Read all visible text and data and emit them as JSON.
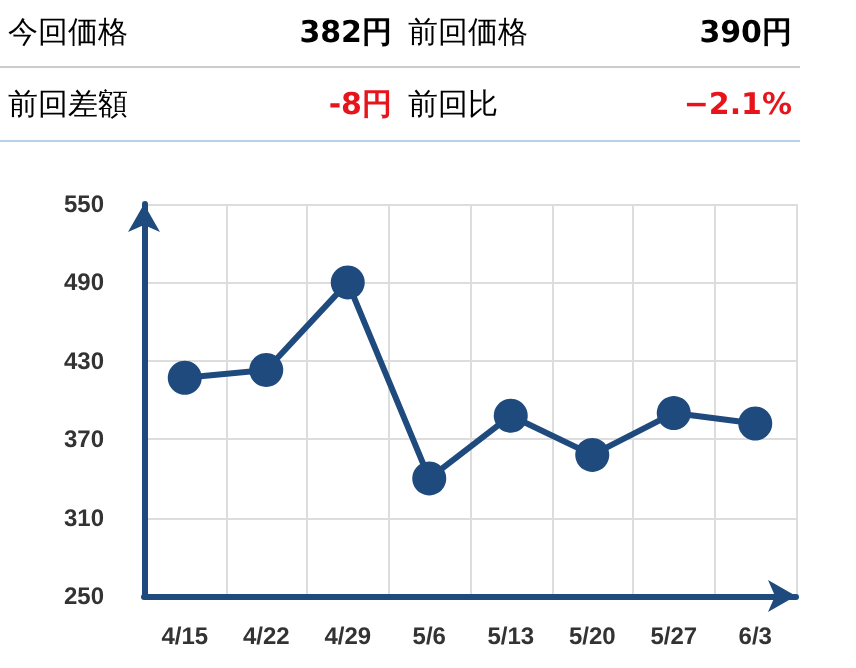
{
  "chart_data": {
    "type": "line",
    "annotations": [
      "今回価格",
      "382円",
      "前回価格",
      "390円",
      "前回差額",
      "-8円",
      "前回比",
      "−2.1%"
    ],
    "categories": [
      "4/15",
      "4/22",
      "4/29",
      "5/6",
      "5/13",
      "5/20",
      "5/27",
      "6/3"
    ],
    "series": [
      {
        "color": "#1f4a7e",
        "values": [
          417,
          423,
          490,
          340,
          388,
          358,
          390,
          382
        ]
      }
    ],
    "ylim": [
      250,
      550
    ],
    "yticks": [
      250,
      310,
      370,
      430,
      490,
      550
    ],
    "grid": true,
    "marker": "circle",
    "line_style": "solid"
  }
}
